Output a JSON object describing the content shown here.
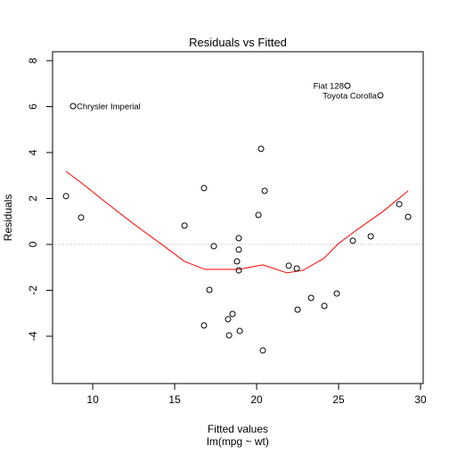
{
  "chart_data": {
    "type": "scatter",
    "title": "Residuals vs Fitted",
    "subtitle": "lm(mpg ~ wt)",
    "x_label": "Fitted values",
    "y_label": "Residuals",
    "x": [
      8.37,
      9.29,
      8.8,
      15.6,
      16.79,
      16.79,
      17.12,
      17.39,
      18.26,
      18.32,
      18.53,
      18.8,
      18.91,
      18.91,
      18.91,
      18.97,
      20.11,
      20.27,
      20.38,
      20.49,
      21.96,
      22.45,
      22.5,
      23.32,
      24.13,
      24.89,
      25.54,
      25.87,
      26.96,
      27.55,
      28.7,
      29.24
    ],
    "series": [
      {
        "color": "#000000",
        "values": [
          2.1,
          1.17,
          6.02,
          0.82,
          2.45,
          -3.53,
          -1.98,
          -0.08,
          -3.26,
          -3.96,
          -3.03,
          -0.74,
          0.27,
          -0.23,
          -1.13,
          -3.77,
          1.28,
          4.16,
          -4.62,
          2.33,
          -0.93,
          -1.05,
          -2.84,
          -2.33,
          -2.68,
          -2.14,
          6.91,
          0.16,
          0.35,
          6.49,
          1.75,
          1.2
        ]
      }
    ],
    "point_labels": [
      null,
      null,
      "Chrysler Imperial",
      null,
      null,
      null,
      null,
      null,
      null,
      null,
      null,
      null,
      null,
      null,
      null,
      null,
      null,
      null,
      null,
      null,
      null,
      null,
      null,
      null,
      null,
      null,
      "Fiat 128",
      null,
      null,
      "Toyota Corolla",
      null,
      null
    ],
    "smooth": {
      "color": "#ff0000",
      "x": [
        8.37,
        9.24,
        10.87,
        12.5,
        14.13,
        15.6,
        16.85,
        18.91,
        20.38,
        21.85,
        22.83,
        24.08,
        25.0,
        26.09,
        27.72,
        29.24
      ],
      "y": [
        3.18,
        2.72,
        1.79,
        0.89,
        0.04,
        -0.74,
        -1.09,
        -1.09,
        -0.89,
        -1.24,
        -1.13,
        -0.62,
        0.04,
        0.62,
        1.44,
        2.33
      ]
    },
    "hline": 0,
    "xlim": [
      7.55,
      30.16
    ],
    "ylim": [
      -6.06,
      8.39
    ],
    "xticks": [
      10,
      15,
      20,
      25,
      30
    ],
    "yticks": [
      -4,
      -2,
      0,
      2,
      4,
      6,
      8
    ]
  }
}
